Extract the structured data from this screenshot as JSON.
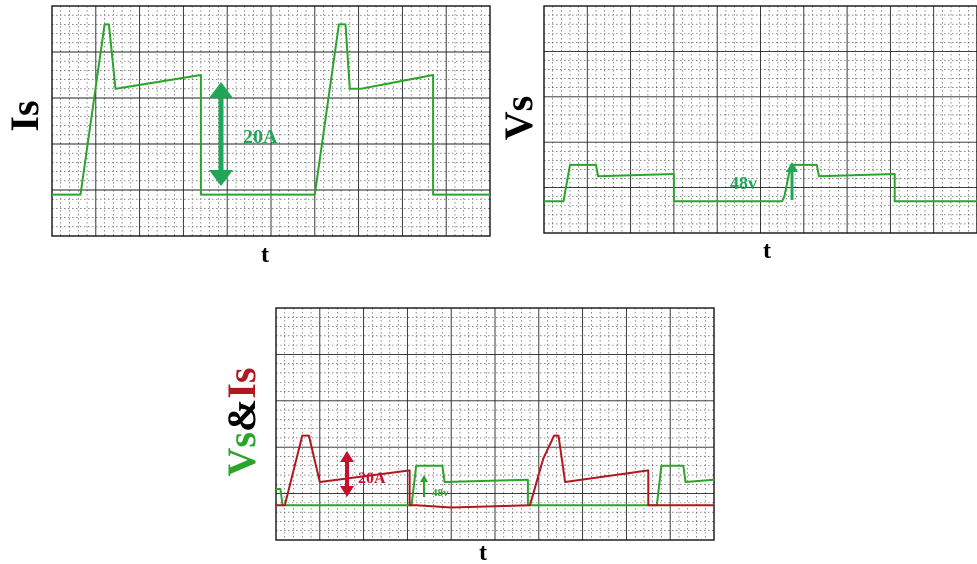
{
  "colors": {
    "green": "#2aa52a",
    "annotation_green": "#1fa656",
    "red": "#b0171f",
    "red_annotation": "#c8102e",
    "label_black": "#000000",
    "grid_major": "#222222",
    "grid_minor": "#444444"
  },
  "chart_data": [
    {
      "type": "line",
      "ylabel": "Is",
      "xlabel": "t",
      "grid": true,
      "xlim": [
        0,
        10
      ],
      "ylim": [
        0,
        10
      ],
      "series": [
        {
          "color": "#2aa52a",
          "x": [
            0,
            0.65,
            1.2,
            1.3,
            1.45,
            3.4,
            3.4,
            3.5,
            4.0,
            6.0,
            6.55,
            6.7,
            6.8,
            7.05,
            8.7,
            8.7,
            8.85,
            9.2,
            10.0
          ],
          "y": [
            1.8,
            1.8,
            9.2,
            9.2,
            6.4,
            7.0,
            1.8,
            1.8,
            1.8,
            1.8,
            9.2,
            9.2,
            6.4,
            6.4,
            7.0,
            1.8,
            1.8,
            1.8,
            1.8
          ]
        }
      ],
      "annotations": [
        {
          "text": "20A",
          "color": "#1fa656"
        }
      ]
    },
    {
      "type": "line",
      "ylabel": "Vs",
      "xlabel": "t",
      "grid": true,
      "xlim": [
        0,
        10
      ],
      "ylim": [
        0,
        10
      ],
      "series": [
        {
          "color": "#2aa52a",
          "x": [
            0,
            0.45,
            0.6,
            1.2,
            1.25,
            3.0,
            3.0,
            5.5,
            5.55,
            5.7,
            6.3,
            6.35,
            8.1,
            8.1,
            10.0
          ],
          "y": [
            1.4,
            1.4,
            3.0,
            3.0,
            2.5,
            2.6,
            1.4,
            1.4,
            1.6,
            3.0,
            3.0,
            2.5,
            2.6,
            1.4,
            1.4
          ]
        }
      ],
      "annotations": [
        {
          "text": "48v",
          "color": "#1fa656"
        }
      ]
    },
    {
      "type": "line",
      "ylabel": "Vs&Is",
      "ylabel_parts": [
        {
          "text": "Vs",
          "color": "#2aa52a"
        },
        {
          "text": "&",
          "color": "#000000"
        },
        {
          "text": "Is",
          "color": "#b0171f"
        }
      ],
      "xlabel": "t",
      "grid": true,
      "xlim": [
        0,
        10
      ],
      "ylim": [
        0,
        10
      ],
      "series": [
        {
          "color": "#2aa52a",
          "x": [
            0,
            0.1,
            0.15,
            3.1,
            3.1,
            3.2,
            3.8,
            3.85,
            5.75,
            5.75,
            8.7,
            8.7,
            8.8,
            9.3,
            9.35,
            10.0
          ],
          "y": [
            2.2,
            2.2,
            1.5,
            1.5,
            1.6,
            3.2,
            3.2,
            2.5,
            2.6,
            1.5,
            1.5,
            1.6,
            3.2,
            3.2,
            2.5,
            2.6
          ]
        },
        {
          "color": "#b0171f",
          "x": [
            0,
            0.2,
            0.6,
            0.75,
            1.0,
            3.05,
            3.05,
            3.2,
            4.0,
            5.8,
            6.1,
            6.35,
            6.45,
            6.6,
            8.5,
            8.5,
            8.7,
            10.0
          ],
          "y": [
            1.5,
            1.5,
            4.5,
            4.5,
            2.5,
            3.0,
            1.5,
            1.5,
            1.4,
            1.5,
            3.5,
            4.5,
            4.5,
            2.5,
            3.0,
            1.5,
            1.5,
            1.5
          ]
        }
      ],
      "annotations": [
        {
          "text": "20A",
          "color": "#c8102e"
        },
        {
          "text": "48v",
          "color": "#2aa52a"
        }
      ]
    }
  ]
}
